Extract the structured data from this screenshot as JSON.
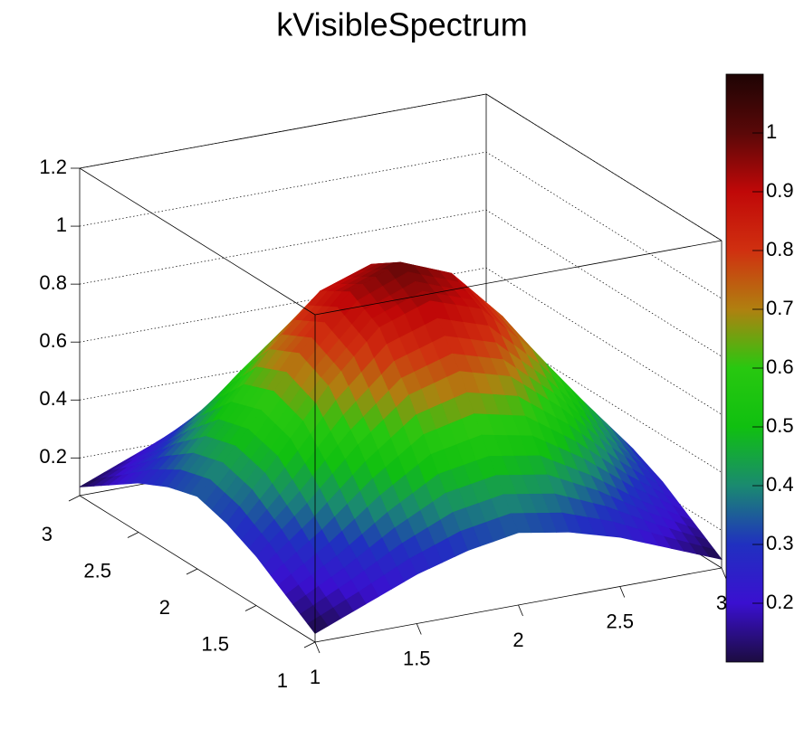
{
  "chart_data": {
    "type": "surface",
    "title": "kVisibleSpectrum",
    "x": [
      1,
      1.25,
      1.5,
      1.75,
      2,
      2.25,
      2.5,
      2.75,
      3
    ],
    "y": [
      1,
      1.25,
      1.5,
      1.75,
      2,
      2.25,
      2.5,
      2.75,
      3
    ],
    "z": [
      [
        0.1,
        0.17,
        0.24,
        0.29,
        0.32,
        0.29,
        0.24,
        0.17,
        0.1
      ],
      [
        0.17,
        0.27,
        0.39,
        0.49,
        0.52,
        0.49,
        0.39,
        0.27,
        0.17
      ],
      [
        0.24,
        0.39,
        0.56,
        0.7,
        0.75,
        0.7,
        0.56,
        0.39,
        0.24
      ],
      [
        0.29,
        0.49,
        0.7,
        0.87,
        0.93,
        0.87,
        0.7,
        0.49,
        0.29
      ],
      [
        0.32,
        0.52,
        0.75,
        0.93,
        1.0,
        0.93,
        0.75,
        0.52,
        0.32
      ],
      [
        0.29,
        0.49,
        0.7,
        0.87,
        0.93,
        0.87,
        0.7,
        0.49,
        0.29
      ],
      [
        0.24,
        0.39,
        0.56,
        0.7,
        0.75,
        0.7,
        0.56,
        0.39,
        0.24
      ],
      [
        0.17,
        0.27,
        0.39,
        0.49,
        0.52,
        0.49,
        0.39,
        0.27,
        0.17
      ],
      [
        0.1,
        0.17,
        0.24,
        0.29,
        0.32,
        0.29,
        0.24,
        0.17,
        0.1
      ]
    ],
    "xlim": [
      1,
      3
    ],
    "xticks": [
      1,
      1.5,
      2,
      2.5,
      3
    ],
    "ylim": [
      1,
      3
    ],
    "yticks": [
      1,
      1.5,
      2,
      2.5,
      3
    ],
    "zlim": [
      0.07,
      1.2
    ],
    "zticks": [
      0.2,
      0.4,
      0.6,
      0.8,
      1,
      1.2
    ],
    "clim": [
      0.1,
      1.1
    ],
    "cticks": [
      0.2,
      0.3,
      0.4,
      0.5,
      0.6,
      0.7,
      0.8,
      0.9,
      1
    ],
    "palette": [
      "#1c0c40",
      "#3a10d0",
      "#2030c0",
      "#1a8a70",
      "#10c010",
      "#28c810",
      "#b08010",
      "#d03010",
      "#c00808",
      "#5a0808",
      "#1e0404"
    ],
    "grid": true
  }
}
